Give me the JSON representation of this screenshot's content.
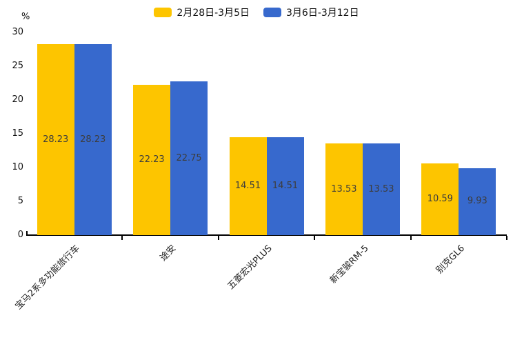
{
  "chart_data": {
    "type": "bar",
    "unit_label": "%",
    "categories": [
      "宝马2系多功能旅行车",
      "途安",
      "五菱宏光PLUS",
      "新宝骏RM-5",
      "别克GL6"
    ],
    "series": [
      {
        "name": "2月28日-3月5日",
        "color": "#FDC500",
        "values": [
          28.23,
          22.23,
          14.51,
          13.53,
          10.59
        ]
      },
      {
        "name": "3月6日-3月12日",
        "color": "#3769CD",
        "values": [
          28.23,
          22.75,
          14.51,
          13.53,
          9.93
        ]
      }
    ],
    "value_labels": [
      "28.23",
      "22.23",
      "14.51",
      "13.53",
      "10.59",
      "28.23",
      "22.75",
      "14.51",
      "13.53",
      "9.93"
    ],
    "ylim": [
      0,
      30
    ],
    "yticks": [
      0,
      5,
      10,
      15,
      20,
      25,
      30
    ],
    "grid": false,
    "legend_position": "top",
    "value_label_position": "inside-center",
    "value_label_color": "#3d3d3d",
    "axis_color": "#000000",
    "xlabel_rotation_deg": 45
  }
}
